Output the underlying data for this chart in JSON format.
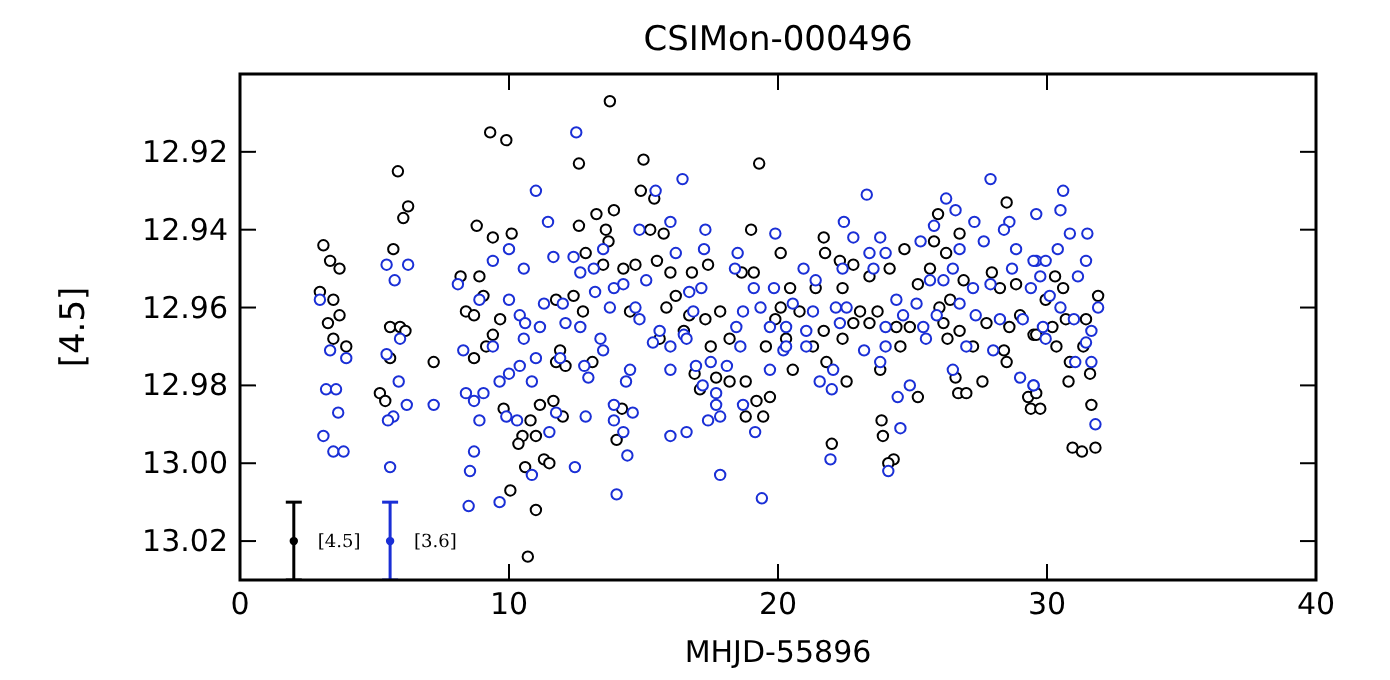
{
  "chart_data": {
    "type": "scatter",
    "title": "CSIMon-000496",
    "xlabel": "MHJD-55896",
    "ylabel": "[4.5]",
    "xlim": [
      0,
      40
    ],
    "xticks": [
      0,
      10,
      20,
      30,
      40
    ],
    "ylim": [
      13.03,
      12.9
    ],
    "yticks": [
      12.92,
      12.94,
      12.96,
      12.98,
      {
        "value": 13,
        "label": "13.00"
      },
      13.02
    ],
    "marker": "circle",
    "grid": false,
    "series": [
      {
        "color": "#000000",
        "x": [
          3.1,
          3.35,
          3.7,
          2.97,
          3.47,
          3.27,
          3.7,
          3.47,
          3.95,
          5.87,
          6.25,
          6.07,
          5.7,
          5.58,
          5.95,
          6.15,
          5.58,
          7.2,
          5.2,
          5.4,
          9.3,
          9.9,
          8.8,
          9.4,
          10.1,
          8.2,
          8.9,
          9.05,
          8.4,
          8.7,
          9.67,
          9.4,
          9.15,
          8.7,
          9.8,
          10.8,
          10.5,
          10.35,
          10.6,
          10.05,
          10.7,
          13.75,
          12.6,
          15.0,
          19.3,
          14.9,
          15.4,
          13.25,
          13.9,
          12.6,
          13.6,
          15.25,
          15.75,
          19.0,
          13.7,
          12.85,
          20.1,
          13.5,
          14.25,
          14.7,
          15.5,
          16.0,
          16.8,
          17.4,
          18.65,
          19.1,
          16.2,
          11.75,
          12.4,
          12.75,
          14.5,
          15.85,
          17.85,
          16.7,
          17.3,
          19.9,
          16.5,
          18.2,
          15.6,
          11.9,
          17.5,
          19.55,
          11.75,
          12.1,
          13.1,
          16.9,
          17.7,
          18.2,
          18.8,
          17.1,
          19.7,
          19.2,
          11.15,
          11.65,
          14.2,
          12.0,
          18.8,
          19.45,
          14.0,
          11.0,
          11.3,
          11.5,
          11.0,
          21.7,
          21.75,
          26.75,
          25.95,
          28.5,
          24.7,
          25.8,
          26.25,
          22.3,
          22.8,
          23.4,
          24.15,
          25.65,
          26.9,
          27.95,
          20.45,
          21.4,
          22.4,
          25.2,
          28.25,
          28.85,
          20.1,
          20.8,
          23.05,
          23.7,
          26.0,
          26.4,
          29.0,
          21.7,
          22.8,
          23.4,
          24.4,
          24.9,
          26.15,
          26.75,
          27.75,
          28.6,
          29.5,
          20.3,
          21.3,
          22.4,
          24.55,
          26.3,
          27.25,
          28.4,
          20.55,
          21.8,
          23.8,
          22.55,
          26.6,
          28.5,
          26.7,
          27.6,
          27.0,
          25.2,
          29.3,
          29.4,
          23.85,
          23.9,
          22.0,
          24.3,
          24.1,
          30.3,
          30.6,
          31.9,
          29.95,
          30.7,
          31.45,
          30.2,
          29.6,
          30.35,
          31.35,
          30.85,
          31.6,
          30.8,
          29.6,
          29.75,
          31.65,
          30.95,
          31.3,
          31.8
        ],
        "values": [
          12.944,
          12.948,
          12.95,
          12.956,
          12.958,
          12.964,
          12.962,
          12.968,
          12.97,
          12.925,
          12.934,
          12.937,
          12.945,
          12.965,
          12.965,
          12.966,
          12.973,
          12.974,
          12.982,
          12.984,
          12.915,
          12.917,
          12.939,
          12.942,
          12.941,
          12.952,
          12.952,
          12.957,
          12.961,
          12.962,
          12.963,
          12.967,
          12.97,
          12.973,
          12.986,
          12.989,
          12.993,
          12.995,
          13.001,
          13.007,
          13.024,
          12.907,
          12.923,
          12.922,
          12.923,
          12.93,
          12.932,
          12.936,
          12.935,
          12.939,
          12.94,
          12.94,
          12.941,
          12.94,
          12.943,
          12.946,
          12.946,
          12.949,
          12.95,
          12.949,
          12.948,
          12.951,
          12.951,
          12.949,
          12.951,
          12.951,
          12.957,
          12.958,
          12.957,
          12.961,
          12.961,
          12.96,
          12.961,
          12.962,
          12.963,
          12.963,
          12.966,
          12.968,
          12.968,
          12.971,
          12.97,
          12.97,
          12.974,
          12.975,
          12.974,
          12.977,
          12.978,
          12.979,
          12.979,
          12.981,
          12.983,
          12.984,
          12.985,
          12.984,
          12.986,
          12.988,
          12.988,
          12.988,
          12.994,
          12.993,
          12.999,
          13.0,
          13.012,
          12.942,
          12.946,
          12.941,
          12.936,
          12.933,
          12.945,
          12.943,
          12.946,
          12.948,
          12.949,
          12.952,
          12.95,
          12.95,
          12.953,
          12.951,
          12.955,
          12.955,
          12.955,
          12.954,
          12.955,
          12.954,
          12.96,
          12.961,
          12.961,
          12.961,
          12.96,
          12.958,
          12.962,
          12.966,
          12.964,
          12.964,
          12.965,
          12.965,
          12.964,
          12.966,
          12.964,
          12.965,
          12.967,
          12.968,
          12.97,
          12.968,
          12.97,
          12.968,
          12.97,
          12.971,
          12.976,
          12.974,
          12.976,
          12.979,
          12.978,
          12.974,
          12.982,
          12.979,
          12.982,
          12.983,
          12.983,
          12.986,
          12.989,
          12.993,
          12.995,
          12.999,
          13.0,
          12.952,
          12.955,
          12.957,
          12.958,
          12.963,
          12.963,
          12.965,
          12.967,
          12.97,
          12.97,
          12.974,
          12.977,
          12.979,
          12.982,
          12.986,
          12.985,
          12.996,
          12.997,
          12.996
        ]
      },
      {
        "color": "#1a2fd6",
        "x": [
          11.0,
          5.45,
          6.25,
          5.75,
          9.4,
          10.0,
          10.55,
          8.1,
          8.9,
          10.0,
          10.4,
          10.6,
          2.97,
          3.35,
          3.95,
          5.45,
          5.95,
          8.3,
          9.4,
          10.55,
          10.4,
          9.65,
          10.0,
          10.85,
          5.9,
          3.2,
          3.57,
          9.05,
          8.4,
          8.7,
          6.2,
          7.2,
          3.65,
          5.7,
          5.5,
          8.9,
          9.9,
          10.3,
          3.1,
          3.47,
          3.85,
          8.7,
          5.58,
          8.55,
          10.85,
          9.65,
          8.5,
          12.5,
          16.45,
          15.45,
          11.45,
          14.85,
          16.0,
          17.3,
          19.9,
          11.65,
          12.4,
          13.5,
          16.2,
          17.25,
          18.5,
          12.65,
          13.15,
          18.4,
          13.2,
          13.9,
          14.25,
          15.1,
          16.7,
          17.15,
          19.1,
          19.85,
          11.3,
          12.0,
          13.75,
          14.7,
          16.85,
          18.7,
          19.35,
          11.15,
          12.1,
          12.65,
          14.85,
          15.6,
          16.5,
          18.45,
          19.7,
          13.4,
          15.35,
          16.6,
          18.6,
          20.2,
          13.5,
          16.0,
          11.9,
          11.0,
          12.8,
          16.95,
          17.5,
          18.1,
          19.7,
          14.5,
          16.0,
          12.95,
          14.35,
          17.2,
          17.7,
          18.7,
          13.9,
          17.7,
          11.75,
          12.85,
          14.6,
          13.9,
          17.4,
          17.85,
          14.25,
          16.0,
          16.6,
          19.15,
          11.5,
          14.4,
          12.45,
          17.85,
          14.0,
          19.4,
          27.9,
          23.3,
          26.25,
          26.6,
          22.45,
          25.8,
          27.3,
          28.6,
          29.6,
          22.8,
          23.8,
          25.3,
          27.65,
          28.4,
          23.4,
          24.0,
          26.75,
          28.85,
          29.6,
          20.95,
          22.4,
          23.55,
          26.5,
          28.7,
          21.4,
          25.65,
          26.15,
          27.25,
          27.9,
          29.4,
          20.55,
          22.15,
          24.4,
          25.15,
          26.75,
          21.3,
          22.55,
          24.65,
          25.9,
          27.35,
          28.25,
          29.1,
          20.3,
          21.05,
          22.3,
          24.0,
          25.4,
          20.3,
          21.05,
          23.2,
          24.0,
          25.5,
          27.0,
          28.0,
          23.8,
          26.5,
          22.05,
          21.55,
          22.0,
          29.0,
          29.5,
          24.9,
          24.45,
          24.55,
          21.95,
          24.1,
          30.6,
          30.5,
          30.85,
          31.5,
          30.4,
          29.5,
          29.95,
          31.45,
          29.75,
          31.15,
          30.1,
          31.9,
          30.5,
          31.0,
          29.85,
          31.65,
          29.95,
          31.45,
          31.05,
          31.65,
          29.5,
          31.8
        ],
        "values": [
          12.93,
          12.949,
          12.949,
          12.953,
          12.948,
          12.945,
          12.95,
          12.954,
          12.958,
          12.958,
          12.962,
          12.964,
          12.958,
          12.971,
          12.973,
          12.972,
          12.968,
          12.971,
          12.97,
          12.968,
          12.975,
          12.979,
          12.977,
          12.979,
          12.979,
          12.981,
          12.981,
          12.982,
          12.982,
          12.984,
          12.985,
          12.985,
          12.987,
          12.988,
          12.989,
          12.989,
          12.988,
          12.989,
          12.993,
          12.997,
          12.997,
          12.997,
          13.001,
          13.002,
          13.003,
          13.01,
          13.011,
          12.915,
          12.927,
          12.93,
          12.938,
          12.94,
          12.938,
          12.94,
          12.941,
          12.947,
          12.947,
          12.945,
          12.946,
          12.945,
          12.946,
          12.951,
          12.95,
          12.95,
          12.956,
          12.955,
          12.954,
          12.953,
          12.956,
          12.955,
          12.955,
          12.955,
          12.959,
          12.959,
          12.96,
          12.96,
          12.961,
          12.961,
          12.96,
          12.965,
          12.964,
          12.965,
          12.963,
          12.966,
          12.967,
          12.965,
          12.965,
          12.968,
          12.969,
          12.968,
          12.97,
          12.971,
          12.971,
          12.97,
          12.973,
          12.973,
          12.975,
          12.975,
          12.974,
          12.975,
          12.976,
          12.976,
          12.976,
          12.978,
          12.979,
          12.98,
          12.982,
          12.985,
          12.985,
          12.985,
          12.987,
          12.988,
          12.987,
          12.989,
          12.989,
          12.988,
          12.992,
          12.993,
          12.992,
          12.992,
          12.992,
          12.998,
          13.001,
          13.003,
          13.008,
          13.009,
          12.927,
          12.931,
          12.932,
          12.935,
          12.938,
          12.939,
          12.938,
          12.938,
          12.936,
          12.942,
          12.942,
          12.943,
          12.943,
          12.94,
          12.946,
          12.946,
          12.945,
          12.945,
          12.948,
          12.95,
          12.95,
          12.95,
          12.95,
          12.95,
          12.953,
          12.953,
          12.953,
          12.955,
          12.954,
          12.955,
          12.959,
          12.96,
          12.958,
          12.959,
          12.959,
          12.961,
          12.96,
          12.962,
          12.962,
          12.962,
          12.963,
          12.963,
          12.965,
          12.966,
          12.964,
          12.965,
          12.965,
          12.97,
          12.97,
          12.971,
          12.97,
          12.968,
          12.97,
          12.971,
          12.974,
          12.976,
          12.976,
          12.979,
          12.981,
          12.978,
          12.98,
          12.98,
          12.983,
          12.991,
          12.999,
          13.002,
          12.93,
          12.935,
          12.941,
          12.941,
          12.945,
          12.948,
          12.948,
          12.948,
          12.952,
          12.952,
          12.957,
          12.96,
          12.96,
          12.963,
          12.965,
          12.966,
          12.968,
          12.969,
          12.974,
          12.974,
          12.98,
          12.99
        ]
      },
      {
        "name": "[4.5]",
        "color": "#000000",
        "x": [
          2.0
        ],
        "values": [
          13.02
        ],
        "errors": [
          0.01
        ]
      },
      {
        "name": "[3.6]",
        "color": "#1a2fd6",
        "x": [
          5.58
        ],
        "values": [
          13.02
        ],
        "errors": [
          0.01
        ]
      }
    ]
  }
}
